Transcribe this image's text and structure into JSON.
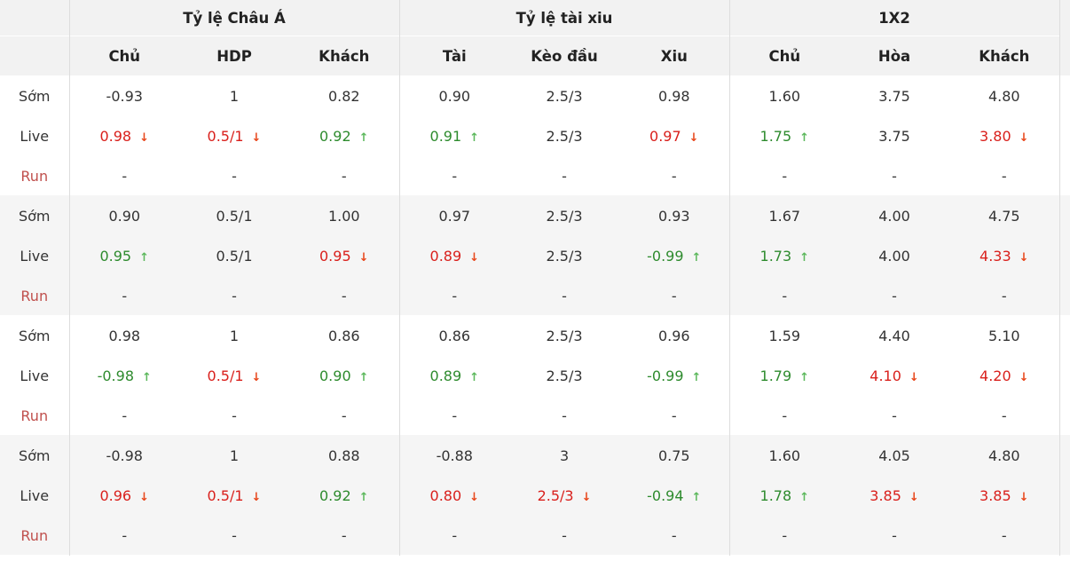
{
  "header": {
    "groups": [
      "Tỷ lệ Châu Á",
      "Tỷ lệ tài xiu",
      "1X2"
    ],
    "columns": [
      "Chủ",
      "HDP",
      "Khách",
      "Tài",
      "Kèo đầu",
      "Xiu",
      "Chủ",
      "Hòa",
      "Khách"
    ]
  },
  "row_labels": {
    "early": "Sớm",
    "live": "Live",
    "run": "Run"
  },
  "colors": {
    "up": "#2e8b2e",
    "down": "#d9201c",
    "run_label": "#c0504d"
  },
  "groups": [
    {
      "early": [
        "-0.93",
        "1",
        "0.82",
        "0.90",
        "2.5/3",
        "0.98",
        "1.60",
        "3.75",
        "4.80"
      ],
      "live": [
        {
          "v": "0.98",
          "t": "down"
        },
        {
          "v": "0.5/1",
          "t": "down"
        },
        {
          "v": "0.92",
          "t": "up"
        },
        {
          "v": "0.91",
          "t": "up"
        },
        {
          "v": "2.5/3",
          "t": ""
        },
        {
          "v": "0.97",
          "t": "down"
        },
        {
          "v": "1.75",
          "t": "up"
        },
        {
          "v": "3.75",
          "t": ""
        },
        {
          "v": "3.80",
          "t": "down"
        }
      ],
      "run": [
        "-",
        "-",
        "-",
        "-",
        "-",
        "-",
        "-",
        "-",
        "-"
      ]
    },
    {
      "early": [
        "0.90",
        "0.5/1",
        "1.00",
        "0.97",
        "2.5/3",
        "0.93",
        "1.67",
        "4.00",
        "4.75"
      ],
      "live": [
        {
          "v": "0.95",
          "t": "up"
        },
        {
          "v": "0.5/1",
          "t": ""
        },
        {
          "v": "0.95",
          "t": "down"
        },
        {
          "v": "0.89",
          "t": "down"
        },
        {
          "v": "2.5/3",
          "t": ""
        },
        {
          "v": "-0.99",
          "t": "up"
        },
        {
          "v": "1.73",
          "t": "up"
        },
        {
          "v": "4.00",
          "t": ""
        },
        {
          "v": "4.33",
          "t": "down"
        }
      ],
      "run": [
        "-",
        "-",
        "-",
        "-",
        "-",
        "-",
        "-",
        "-",
        "-"
      ]
    },
    {
      "early": [
        "0.98",
        "1",
        "0.86",
        "0.86",
        "2.5/3",
        "0.96",
        "1.59",
        "4.40",
        "5.10"
      ],
      "live": [
        {
          "v": "-0.98",
          "t": "up"
        },
        {
          "v": "0.5/1",
          "t": "down"
        },
        {
          "v": "0.90",
          "t": "up"
        },
        {
          "v": "0.89",
          "t": "up"
        },
        {
          "v": "2.5/3",
          "t": ""
        },
        {
          "v": "-0.99",
          "t": "up"
        },
        {
          "v": "1.79",
          "t": "up"
        },
        {
          "v": "4.10",
          "t": "down"
        },
        {
          "v": "4.20",
          "t": "down"
        }
      ],
      "run": [
        "-",
        "-",
        "-",
        "-",
        "-",
        "-",
        "-",
        "-",
        "-"
      ]
    },
    {
      "early": [
        "-0.98",
        "1",
        "0.88",
        "-0.88",
        "3",
        "0.75",
        "1.60",
        "4.05",
        "4.80"
      ],
      "live": [
        {
          "v": "0.96",
          "t": "down"
        },
        {
          "v": "0.5/1",
          "t": "down"
        },
        {
          "v": "0.92",
          "t": "up"
        },
        {
          "v": "0.80",
          "t": "down"
        },
        {
          "v": "2.5/3",
          "t": "down"
        },
        {
          "v": "-0.94",
          "t": "up"
        },
        {
          "v": "1.78",
          "t": "up"
        },
        {
          "v": "3.85",
          "t": "down"
        },
        {
          "v": "3.85",
          "t": "down"
        }
      ],
      "run": [
        "-",
        "-",
        "-",
        "-",
        "-",
        "-",
        "-",
        "-",
        "-"
      ]
    }
  ]
}
